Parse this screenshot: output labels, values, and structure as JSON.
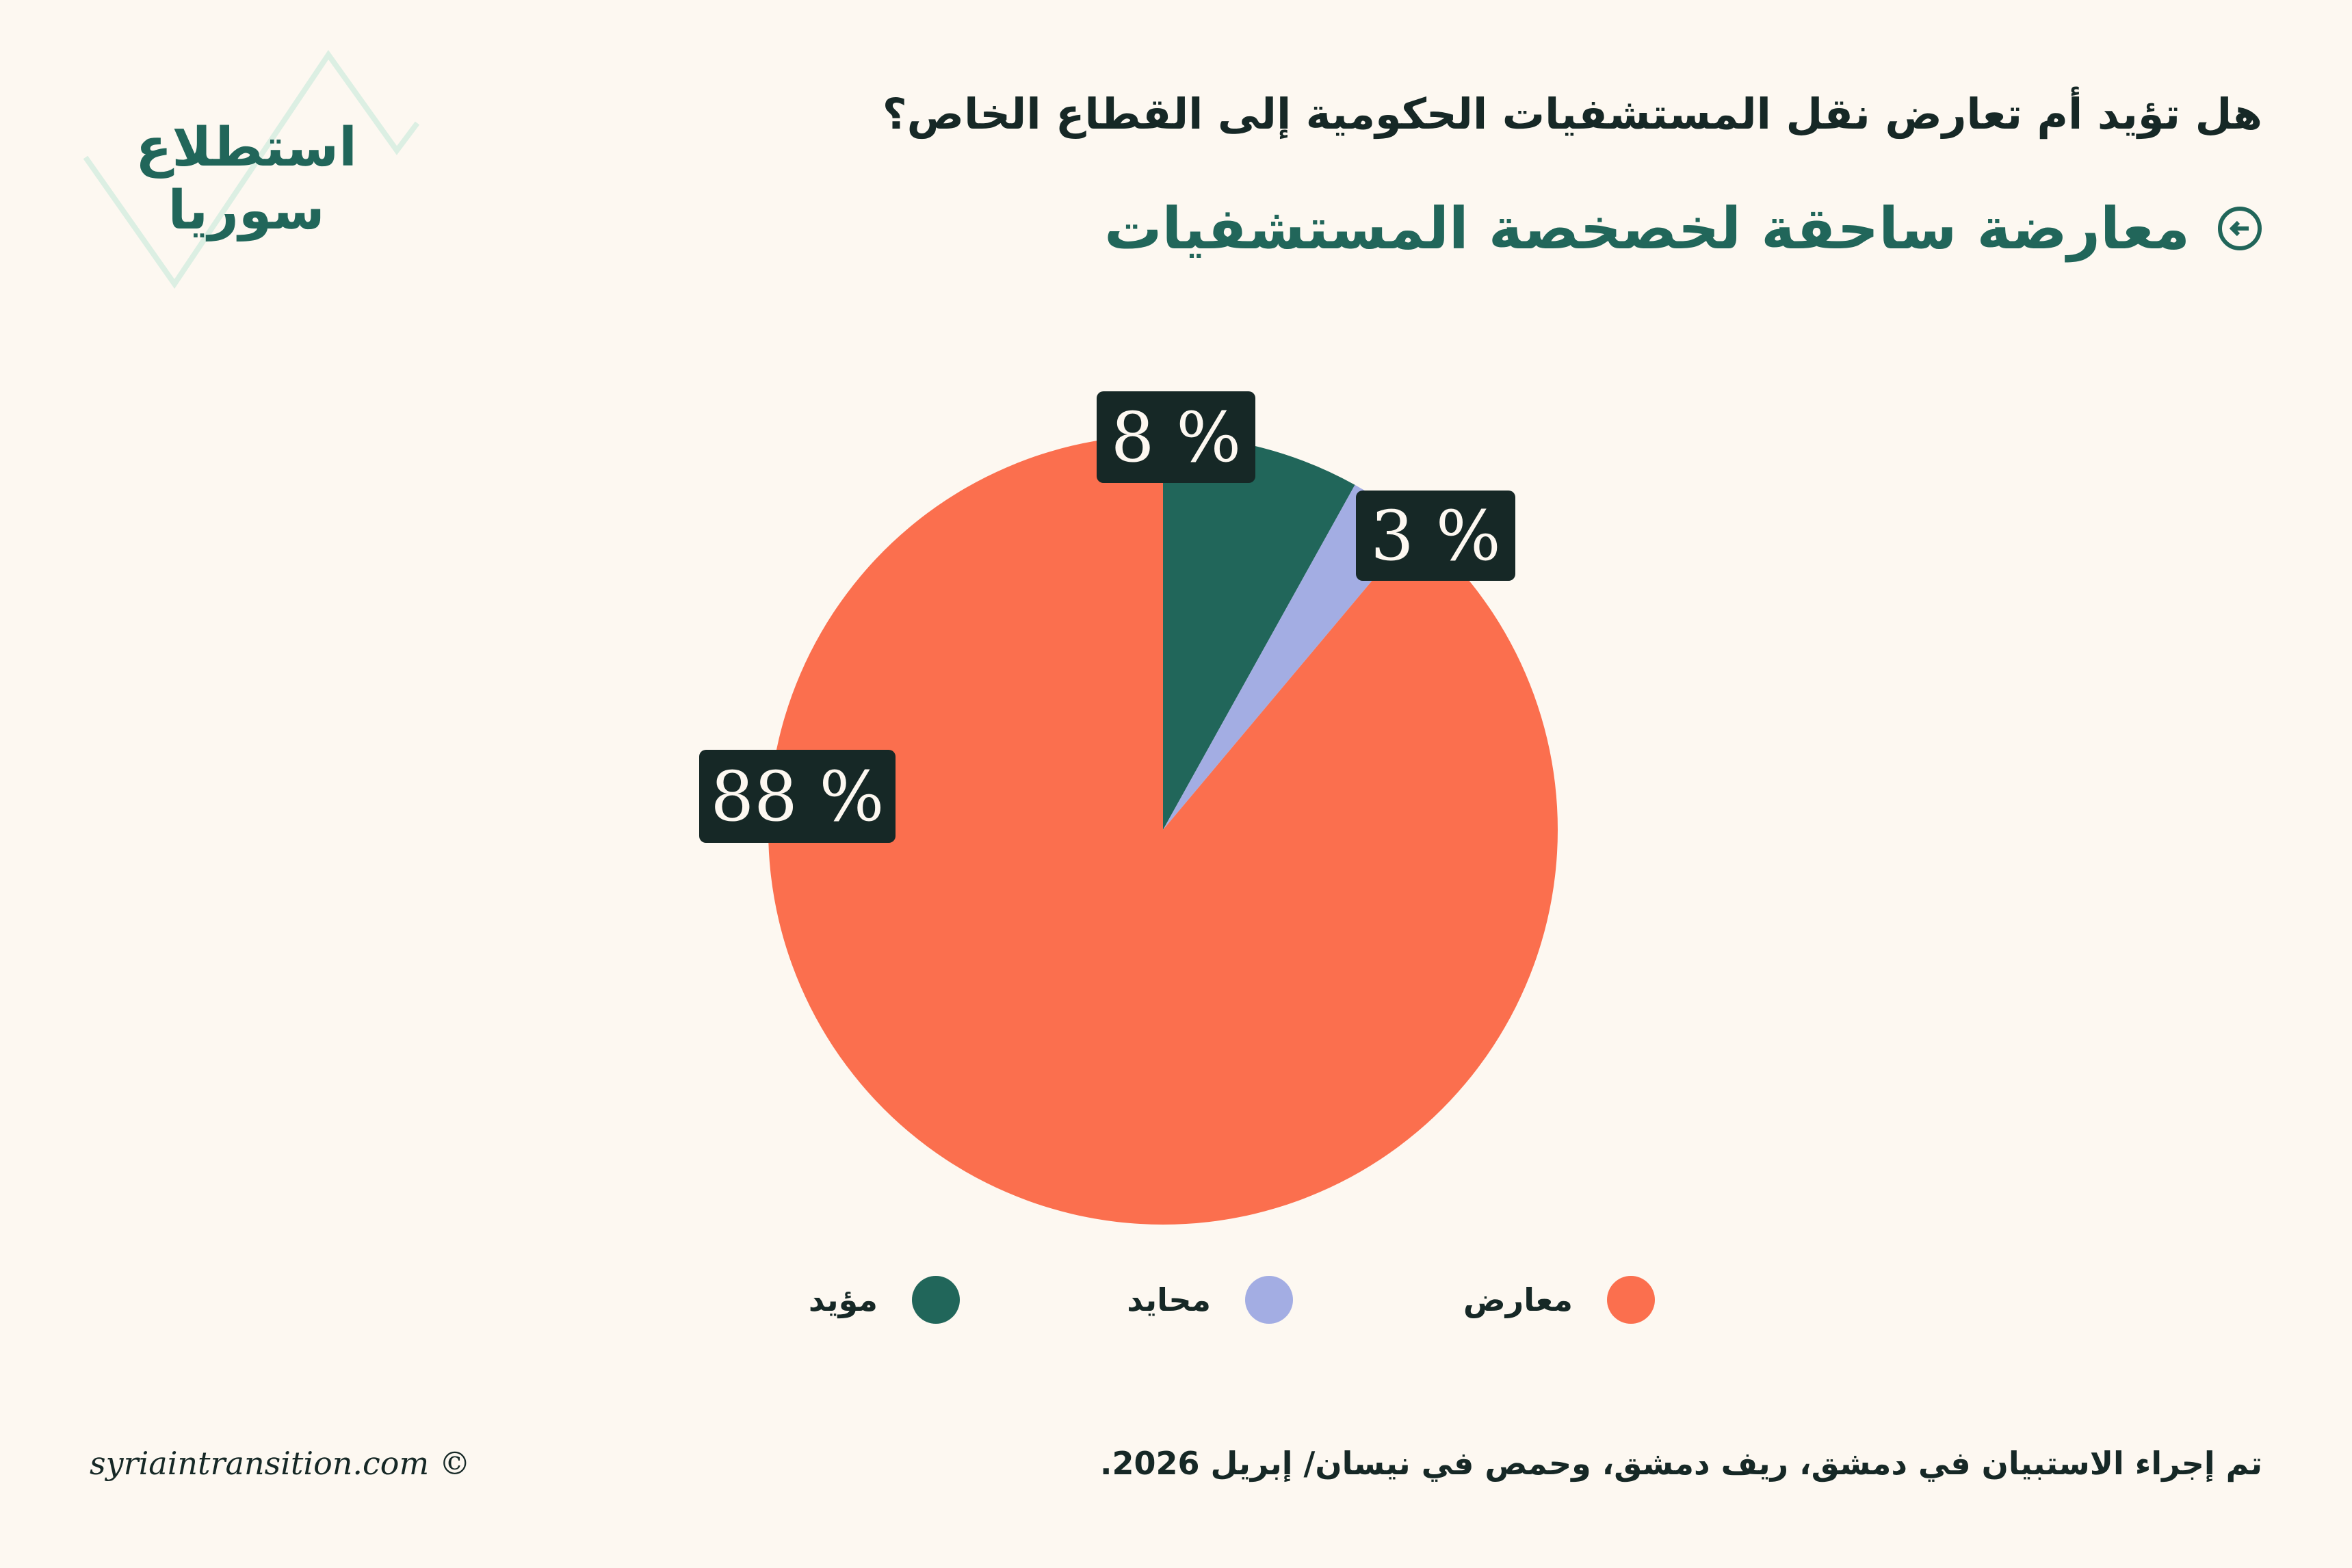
{
  "logo": {
    "line1": "استطلاع",
    "line2": "سوريا"
  },
  "header": {
    "question": "هل تؤيد أم تعارض نقل المستشفيات الحكومية إلى القطاع الخاص؟",
    "subtitle": "معارضة ساحقة لخصخصة المستشفيات",
    "subtitle_icon": "circle-arrow-left-icon"
  },
  "chart_data": {
    "type": "pie",
    "title": "هل تؤيد أم تعارض نقل المستشفيات الحكومية إلى القطاع الخاص؟",
    "slices": [
      {
        "name": "مؤيد",
        "value": 8,
        "label": "8 %",
        "color": "#21665a"
      },
      {
        "name": "محايد",
        "value": 3,
        "label": "3 %",
        "color": "#a3ade3"
      },
      {
        "name": "معارض",
        "value": 88,
        "label": "88 %",
        "color": "#fb6f4e"
      }
    ],
    "legend_placement": "bottom"
  },
  "legend": [
    {
      "label": "معارض",
      "color": "#fb6f4e"
    },
    {
      "label": "محايد",
      "color": "#a3ade3"
    },
    {
      "label": "مؤيد",
      "color": "#21665a"
    }
  ],
  "footer": {
    "note": "تم إجراء الاستبيان في دمشق، ريف دمشق، وحمص في نيسان/ إبريل 2026.",
    "copyright": "syriaintransition.com ©"
  }
}
